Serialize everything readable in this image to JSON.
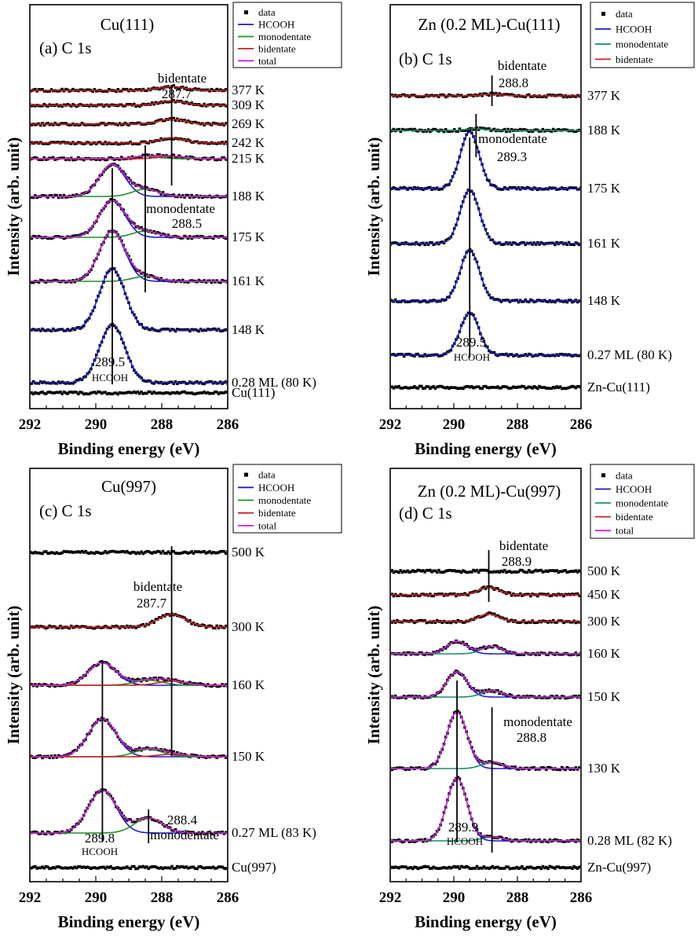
{
  "figure": {
    "colors": {
      "data": "#000000",
      "HCOOH": "#1a1acc",
      "monodentate": "#1f8f2a",
      "monodentate_alt": "#14906a",
      "bidentate": "#cc1f1f",
      "total": "#cc22cc"
    }
  },
  "chart_data": [
    {
      "id": "a",
      "type": "line",
      "sample": "Cu(111)",
      "panel_label": "(a) C 1s",
      "xlabel": "Binding energy (eV)",
      "ylabel": "Intensity (arb. unit)",
      "xlim": [
        292,
        286
      ],
      "x_reversed": true,
      "x_ticks": [
        "292",
        "290",
        "288",
        "286"
      ],
      "legend": [
        "data",
        "HCOOH",
        "monodentate",
        "bidentate",
        "total"
      ],
      "legend_position": "top-right",
      "peaks": [
        {
          "name": "HCOOH",
          "label": "HCOOH",
          "energy": 289.5,
          "energy_label": "289.5"
        },
        {
          "name": "monodentate",
          "label": "monodentate",
          "energy": 288.5,
          "energy_label": "288.5"
        },
        {
          "name": "bidentate",
          "label": "bidentate",
          "energy": 287.7,
          "energy_label": "287.7"
        }
      ],
      "spectra": [
        {
          "label": "377 K",
          "components": {
            "bidentate": 0.06
          }
        },
        {
          "label": "309 K",
          "components": {
            "bidentate": 0.07
          }
        },
        {
          "label": "269 K",
          "components": {
            "bidentate": 0.08
          }
        },
        {
          "label": "242 K",
          "components": {
            "bidentate": 0.08
          }
        },
        {
          "label": "215 K",
          "components": {
            "monodentate": 0.04,
            "bidentate": 0.04
          }
        },
        {
          "label": "188 K",
          "components": {
            "HCOOH": 0.52,
            "monodentate": 0.12
          }
        },
        {
          "label": "175 K",
          "components": {
            "HCOOH": 0.6,
            "monodentate": 0.1
          }
        },
        {
          "label": "161 K",
          "components": {
            "HCOOH": 0.82,
            "monodentate": 0.08
          }
        },
        {
          "label": "148 K",
          "components": {
            "HCOOH": 1.0
          }
        },
        {
          "label": "0.28 ML (80 K)",
          "components": {
            "HCOOH": 0.95
          }
        },
        {
          "label": "Cu(111)",
          "components": {}
        }
      ]
    },
    {
      "id": "b",
      "type": "line",
      "sample": "Zn (0.2 ML)-Cu(111)",
      "panel_label": "(b) C 1s",
      "xlabel": "Binding energy (eV)",
      "ylabel": "Intensity (arb. unit)",
      "xlim": [
        292,
        286
      ],
      "x_reversed": true,
      "x_ticks": [
        "292",
        "290",
        "288",
        "286"
      ],
      "legend": [
        "data",
        "HCOOH",
        "monodentate",
        "bidentate"
      ],
      "legend_position": "top-right",
      "peaks": [
        {
          "name": "HCOOH",
          "label": "HCOOH",
          "energy": 289.5,
          "energy_label": "289.5"
        },
        {
          "name": "monodentate",
          "label": "monodentate",
          "energy": 289.3,
          "energy_label": "289.3"
        },
        {
          "name": "bidentate",
          "label": "bidentate",
          "energy": 288.8,
          "energy_label": "288.8"
        }
      ],
      "spectra": [
        {
          "label": "377 K",
          "components": {
            "bidentate": 0.03
          }
        },
        {
          "label": "188 K",
          "components": {
            "monodentate": 0.03
          }
        },
        {
          "label": "175 K",
          "components": {
            "HCOOH": 1.0
          }
        },
        {
          "label": "161 K",
          "components": {
            "HCOOH": 0.95
          }
        },
        {
          "label": "148 K",
          "components": {
            "HCOOH": 0.9
          }
        },
        {
          "label": "0.27 ML (80 K)",
          "components": {
            "HCOOH": 0.75
          }
        },
        {
          "label": "Zn-Cu(111)",
          "components": {}
        }
      ]
    },
    {
      "id": "c",
      "type": "line",
      "sample": "Cu(997)",
      "panel_label": "(c) C 1s",
      "xlabel": "Binding energy (eV)",
      "ylabel": "Intensity (arb. unit)",
      "xlim": [
        292,
        286
      ],
      "x_reversed": true,
      "x_ticks": [
        "292",
        "290",
        "288",
        "286"
      ],
      "legend": [
        "data",
        "HCOOH",
        "monodentate",
        "bidentate",
        "total"
      ],
      "legend_position": "top-right",
      "peaks": [
        {
          "name": "HCOOH",
          "label": "HCOOH",
          "energy": 289.8,
          "energy_label": "289.8"
        },
        {
          "name": "monodentate",
          "label": "monodentate",
          "energy": 288.4,
          "energy_label": "288.4"
        },
        {
          "name": "bidentate",
          "label": "bidentate",
          "energy": 287.7,
          "energy_label": "287.7"
        }
      ],
      "spectra": [
        {
          "label": "500 K",
          "components": {}
        },
        {
          "label": "300 K",
          "components": {
            "bidentate": 0.25
          }
        },
        {
          "label": "160 K",
          "components": {
            "HCOOH": 0.45,
            "monodentate": 0.1,
            "bidentate": 0.08
          }
        },
        {
          "label": "150 K",
          "components": {
            "HCOOH": 0.75,
            "monodentate": 0.15,
            "bidentate": 0.05
          }
        },
        {
          "label": "0.27 ML (83 K)",
          "components": {
            "HCOOH": 0.85,
            "monodentate": 0.3
          }
        },
        {
          "label": "Cu(997)",
          "components": {}
        }
      ]
    },
    {
      "id": "d",
      "type": "line",
      "sample": "Zn (0.2 ML)-Cu(997)",
      "panel_label": "(d) C 1s",
      "xlabel": "Binding energy (eV)",
      "ylabel": "Intensity (arb. unit)",
      "xlim": [
        292,
        286
      ],
      "x_reversed": true,
      "x_ticks": [
        "292",
        "290",
        "288",
        "286"
      ],
      "legend": [
        "data",
        "HCOOH",
        "monodentate",
        "bidentate",
        "total"
      ],
      "legend_position": "top-right",
      "peaks": [
        {
          "name": "HCOOH",
          "label": "HCOOH",
          "energy": 289.9,
          "energy_label": "289.9"
        },
        {
          "name": "monodentate",
          "label": "monodentate",
          "energy": 288.8,
          "energy_label": "288.8"
        },
        {
          "name": "bidentate",
          "label": "bidentate",
          "energy": 288.9,
          "energy_label": "288.9"
        }
      ],
      "spectra": [
        {
          "label": "500 K",
          "components": {}
        },
        {
          "label": "450 K",
          "components": {
            "bidentate": 0.12
          }
        },
        {
          "label": "300 K",
          "components": {
            "bidentate": 0.12
          }
        },
        {
          "label": "160 K",
          "components": {
            "HCOOH": 0.2,
            "monodentate": 0.12
          }
        },
        {
          "label": "150 K",
          "components": {
            "HCOOH": 0.4,
            "monodentate": 0.1
          }
        },
        {
          "label": "130 K",
          "components": {
            "HCOOH": 0.9,
            "monodentate": 0.1
          }
        },
        {
          "label": "0.28 ML (82 K)",
          "components": {
            "HCOOH": 1.0,
            "monodentate": 0.06
          }
        },
        {
          "label": "Zn-Cu(997)",
          "components": {}
        }
      ]
    }
  ]
}
